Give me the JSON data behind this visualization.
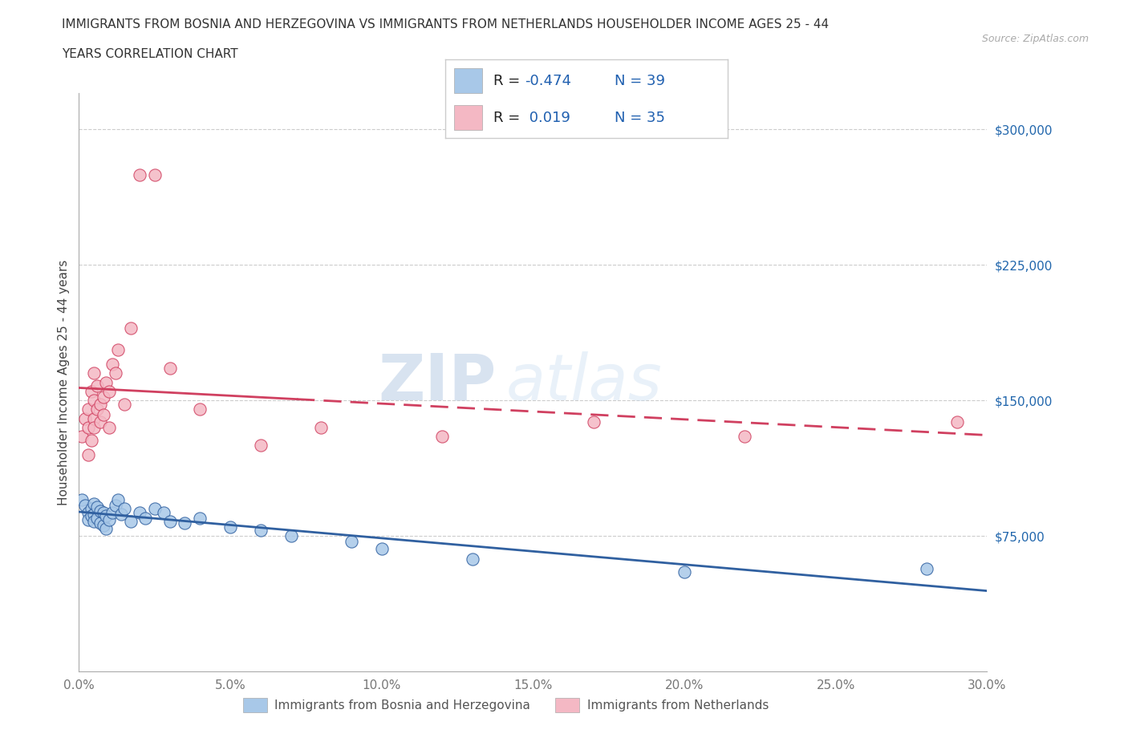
{
  "title_line1": "IMMIGRANTS FROM BOSNIA AND HERZEGOVINA VS IMMIGRANTS FROM NETHERLANDS HOUSEHOLDER INCOME AGES 25 - 44",
  "title_line2": "YEARS CORRELATION CHART",
  "source_text": "Source: ZipAtlas.com",
  "ylabel": "Householder Income Ages 25 - 44 years",
  "xlim": [
    0.0,
    0.3
  ],
  "ylim": [
    0,
    320000
  ],
  "xticks": [
    0.0,
    0.05,
    0.1,
    0.15,
    0.2,
    0.25,
    0.3
  ],
  "xticklabels": [
    "0.0%",
    "5.0%",
    "10.0%",
    "15.0%",
    "20.0%",
    "25.0%",
    "30.0%"
  ],
  "yticks": [
    0,
    75000,
    150000,
    225000,
    300000
  ],
  "yticklabels": [
    "",
    "$75,000",
    "$150,000",
    "$225,000",
    "$300,000"
  ],
  "bosnia_color": "#a8c8e8",
  "netherlands_color": "#f4b8c4",
  "bosnia_line_color": "#3060a0",
  "netherlands_line_color": "#d04060",
  "bosnia_R": -0.474,
  "bosnia_N": 39,
  "netherlands_R": 0.019,
  "netherlands_N": 35,
  "legend_label1": "Immigrants from Bosnia and Herzegovina",
  "legend_label2": "Immigrants from Netherlands",
  "watermark_ZIP": "ZIP",
  "watermark_atlas": "atlas",
  "background_color": "#ffffff",
  "grid_color": "#cccccc",
  "bosnia_x": [
    0.001,
    0.002,
    0.003,
    0.003,
    0.004,
    0.004,
    0.005,
    0.005,
    0.005,
    0.006,
    0.006,
    0.007,
    0.007,
    0.008,
    0.008,
    0.009,
    0.009,
    0.01,
    0.011,
    0.012,
    0.013,
    0.014,
    0.015,
    0.017,
    0.02,
    0.022,
    0.025,
    0.028,
    0.03,
    0.035,
    0.04,
    0.05,
    0.06,
    0.07,
    0.09,
    0.1,
    0.13,
    0.2,
    0.28
  ],
  "bosnia_y": [
    95000,
    92000,
    88000,
    84000,
    90000,
    86000,
    93000,
    87000,
    83000,
    91000,
    85000,
    89000,
    82000,
    88000,
    81000,
    86000,
    79000,
    84000,
    88000,
    92000,
    95000,
    87000,
    90000,
    83000,
    88000,
    85000,
    90000,
    88000,
    83000,
    82000,
    85000,
    80000,
    78000,
    75000,
    72000,
    68000,
    62000,
    55000,
    57000
  ],
  "netherlands_x": [
    0.001,
    0.002,
    0.003,
    0.003,
    0.003,
    0.004,
    0.004,
    0.005,
    0.005,
    0.005,
    0.005,
    0.006,
    0.006,
    0.007,
    0.007,
    0.008,
    0.008,
    0.009,
    0.01,
    0.01,
    0.011,
    0.012,
    0.013,
    0.015,
    0.017,
    0.02,
    0.025,
    0.03,
    0.04,
    0.06,
    0.08,
    0.12,
    0.17,
    0.22,
    0.29
  ],
  "netherlands_y": [
    130000,
    140000,
    120000,
    135000,
    145000,
    128000,
    155000,
    140000,
    150000,
    135000,
    165000,
    145000,
    158000,
    138000,
    148000,
    152000,
    142000,
    160000,
    135000,
    155000,
    170000,
    165000,
    178000,
    148000,
    190000,
    275000,
    275000,
    168000,
    145000,
    125000,
    135000,
    130000,
    138000,
    130000,
    138000
  ]
}
